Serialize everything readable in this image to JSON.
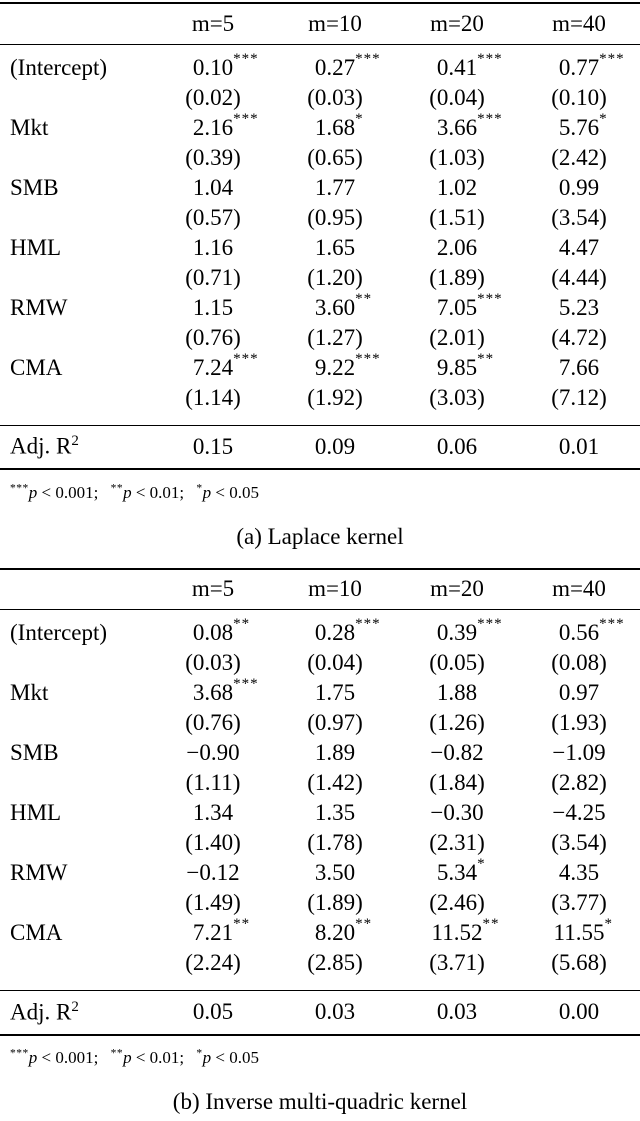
{
  "page": {
    "background": "#ffffff",
    "text_color": "#000000"
  },
  "panels": [
    {
      "caption": "(a) Laplace kernel",
      "columns": [
        "m=5",
        "m=10",
        "m=20",
        "m=40"
      ],
      "rows": [
        {
          "label": "(Intercept)",
          "est": [
            "0.10",
            "0.27",
            "0.41",
            "0.77"
          ],
          "star": [
            "***",
            "***",
            "***",
            "***"
          ],
          "se": [
            "(0.02)",
            "(0.03)",
            "(0.04)",
            "(0.10)"
          ]
        },
        {
          "label": "Mkt",
          "est": [
            "2.16",
            "1.68",
            "3.66",
            "5.76"
          ],
          "star": [
            "***",
            "*",
            "***",
            "*"
          ],
          "se": [
            "(0.39)",
            "(0.65)",
            "(1.03)",
            "(2.42)"
          ]
        },
        {
          "label": "SMB",
          "est": [
            "1.04",
            "1.77",
            "1.02",
            "0.99"
          ],
          "star": [
            "",
            "",
            "",
            ""
          ],
          "se": [
            "(0.57)",
            "(0.95)",
            "(1.51)",
            "(3.54)"
          ]
        },
        {
          "label": "HML",
          "est": [
            "1.16",
            "1.65",
            "2.06",
            "4.47"
          ],
          "star": [
            "",
            "",
            "",
            ""
          ],
          "se": [
            "(0.71)",
            "(1.20)",
            "(1.89)",
            "(4.44)"
          ]
        },
        {
          "label": "RMW",
          "est": [
            "1.15",
            "3.60",
            "7.05",
            "5.23"
          ],
          "star": [
            "",
            "**",
            "***",
            ""
          ],
          "se": [
            "(0.76)",
            "(1.27)",
            "(2.01)",
            "(4.72)"
          ]
        },
        {
          "label": "CMA",
          "est": [
            "7.24",
            "9.22",
            "9.85",
            "7.66"
          ],
          "star": [
            "***",
            "***",
            "**",
            ""
          ],
          "se": [
            "(1.14)",
            "(1.92)",
            "(3.03)",
            "(7.12)"
          ]
        }
      ],
      "adj": {
        "label": "Adj. R",
        "sup": "2",
        "values": [
          "0.15",
          "0.09",
          "0.06",
          "0.01"
        ]
      },
      "note": {
        "segments": [
          {
            "stars": "***",
            "p": "p",
            "cond": " < 0.001;"
          },
          {
            "stars": "**",
            "p": "p",
            "cond": " < 0.01;"
          },
          {
            "stars": "*",
            "p": "p",
            "cond": " < 0.05"
          }
        ]
      }
    },
    {
      "caption": "(b) Inverse multi-quadric kernel",
      "columns": [
        "m=5",
        "m=10",
        "m=20",
        "m=40"
      ],
      "rows": [
        {
          "label": "(Intercept)",
          "est": [
            "0.08",
            "0.28",
            "0.39",
            "0.56"
          ],
          "star": [
            "**",
            "***",
            "***",
            "***"
          ],
          "se": [
            "(0.03)",
            "(0.04)",
            "(0.05)",
            "(0.08)"
          ]
        },
        {
          "label": "Mkt",
          "est": [
            "3.68",
            "1.75",
            "1.88",
            "0.97"
          ],
          "star": [
            "***",
            "",
            "",
            ""
          ],
          "se": [
            "(0.76)",
            "(0.97)",
            "(1.26)",
            "(1.93)"
          ]
        },
        {
          "label": "SMB",
          "est": [
            "−0.90",
            "1.89",
            "−0.82",
            "−1.09"
          ],
          "star": [
            "",
            "",
            "",
            ""
          ],
          "se": [
            "(1.11)",
            "(1.42)",
            "(1.84)",
            "(2.82)"
          ]
        },
        {
          "label": "HML",
          "est": [
            "1.34",
            "1.35",
            "−0.30",
            "−4.25"
          ],
          "star": [
            "",
            "",
            "",
            ""
          ],
          "se": [
            "(1.40)",
            "(1.78)",
            "(2.31)",
            "(3.54)"
          ]
        },
        {
          "label": "RMW",
          "est": [
            "−0.12",
            "3.50",
            "5.34",
            "4.35"
          ],
          "star": [
            "",
            "",
            "*",
            ""
          ],
          "se": [
            "(1.49)",
            "(1.89)",
            "(2.46)",
            "(3.77)"
          ]
        },
        {
          "label": "CMA",
          "est": [
            "7.21",
            "8.20",
            "11.52",
            "11.55"
          ],
          "star": [
            "**",
            "**",
            "**",
            "*"
          ],
          "se": [
            "(2.24)",
            "(2.85)",
            "(3.71)",
            "(5.68)"
          ]
        }
      ],
      "adj": {
        "label": "Adj. R",
        "sup": "2",
        "values": [
          "0.05",
          "0.03",
          "0.03",
          "0.00"
        ]
      },
      "note": {
        "segments": [
          {
            "stars": "***",
            "p": "p",
            "cond": " < 0.001;"
          },
          {
            "stars": "**",
            "p": "p",
            "cond": " < 0.01;"
          },
          {
            "stars": "*",
            "p": "p",
            "cond": " < 0.05"
          }
        ]
      }
    }
  ]
}
